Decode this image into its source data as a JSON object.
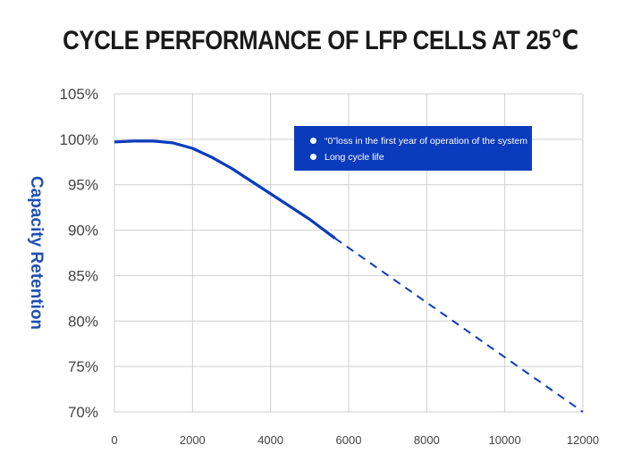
{
  "chart_data": {
    "type": "line",
    "title": "CYCLE PERFORMANCE OF LFP CELLS AT 25℃",
    "ylabel": "Capacity Retention",
    "xlabel": "",
    "xlim": [
      0,
      12000
    ],
    "ylim": [
      70,
      105
    ],
    "x_ticks": [
      "0",
      "2000",
      "4000",
      "6000",
      "8000",
      "10000",
      "12000"
    ],
    "y_ticks": [
      "105%",
      "100%",
      "95%",
      "90%",
      "85%",
      "80%",
      "75%",
      "70%"
    ],
    "grid": true,
    "series": [
      {
        "style": "solid",
        "color": "#0b3bbd",
        "x": [
          0,
          500,
          1000,
          1500,
          2000,
          2500,
          3000,
          3500,
          4000,
          4500,
          5000,
          5650
        ],
        "y": [
          99.7,
          99.8,
          99.8,
          99.6,
          99.0,
          98.0,
          96.8,
          95.4,
          94.0,
          92.6,
          91.2,
          89.1
        ]
      },
      {
        "style": "dashed",
        "color": "#0b3bbd",
        "x": [
          5650,
          12000
        ],
        "y": [
          89.1,
          70.0
        ]
      }
    ],
    "annotations": [
      "“0”loss in the first year of operation of the system",
      "Long cycle life"
    ],
    "annotation_box_color": "#0b3bbd"
  }
}
